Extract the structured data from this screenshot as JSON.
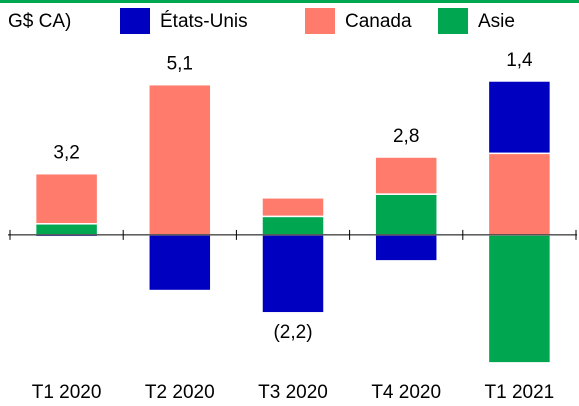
{
  "chart_data": {
    "type": "bar",
    "stacked": true,
    "title": "G$ CA)",
    "categories": [
      "T1 2020",
      "T2 2020",
      "T3 2020",
      "T4 2020",
      "T1 2021"
    ],
    "series": [
      {
        "name": "États-Unis",
        "color": "#0000c0",
        "values": [
          -0.1,
          -3.0,
          -4.2,
          -1.4,
          3.9
        ]
      },
      {
        "name": "Canada",
        "color": "#ff7b6b",
        "values": [
          2.7,
          8.1,
          1.0,
          2.0,
          4.4
        ]
      },
      {
        "name": "Asie",
        "color": "#00a650",
        "values": [
          0.6,
          0,
          1.0,
          2.2,
          -6.9
        ]
      }
    ],
    "totals": [
      3.2,
      5.1,
      -2.2,
      2.8,
      1.4
    ],
    "value_labels": [
      "3,2",
      "5,1",
      "(2,2)",
      "2,8",
      "1,4"
    ],
    "ylim": [
      -7.5,
      9
    ]
  }
}
